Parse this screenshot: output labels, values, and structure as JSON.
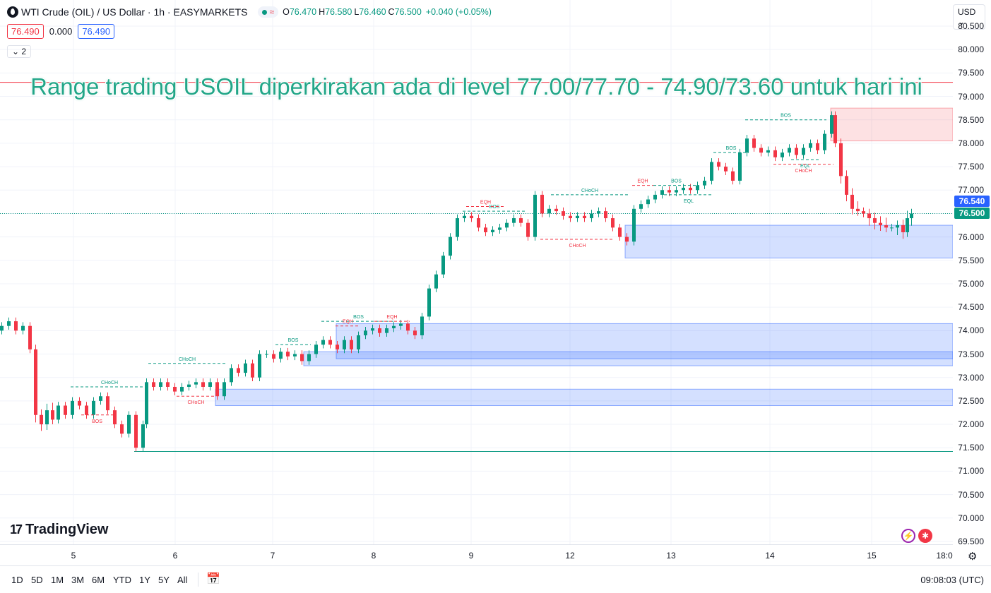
{
  "header": {
    "symbol": "WTI Crude (OIL) / US Dollar · 1h · EASYMARKETS",
    "open_label": "O",
    "open": "76.470",
    "high_label": "H",
    "high": "76.580",
    "low_label": "L",
    "low": "76.460",
    "close_label": "C",
    "close": "76.500",
    "change": "+0.040 (+0.05%)",
    "status_glyph": "≈"
  },
  "trade": {
    "sell": "76.490",
    "spread": "0.000",
    "buy": "76.490"
  },
  "indicator_toggle": "2",
  "headline": "Range trading USOIL diperkirakan ada di level 77.00/77.70 - 74.90/73.60 untuk hari ini",
  "currency": "USD",
  "price_axis": [
    "80.500",
    "80.000",
    "79.500",
    "79.000",
    "78.500",
    "78.000",
    "77.500",
    "77.000",
    "76.500",
    "76.000",
    "75.500",
    "75.000",
    "74.500",
    "74.000",
    "73.500",
    "73.000",
    "72.500",
    "72.000",
    "71.500",
    "71.000",
    "70.500",
    "70.000",
    "69.500"
  ],
  "price_tags": {
    "upper": "76.540",
    "current": "76.500"
  },
  "time_axis": [
    "5",
    "6",
    "7",
    "8",
    "9",
    "12",
    "13",
    "14",
    "15",
    "18:0"
  ],
  "ranges": [
    "1D",
    "5D",
    "1M",
    "3M",
    "6M",
    "YTD",
    "1Y",
    "5Y",
    "All"
  ],
  "clock": "09:08:03 (UTC)",
  "logo_text": "TradingView",
  "annotations": {
    "bos": "BOS",
    "choch": "CHoCH",
    "eqh": "EQH",
    "eql": "EQL"
  },
  "colors": {
    "up": "#089981",
    "down": "#f23645",
    "accent": "#2962ff",
    "headline": "#22a688"
  }
}
